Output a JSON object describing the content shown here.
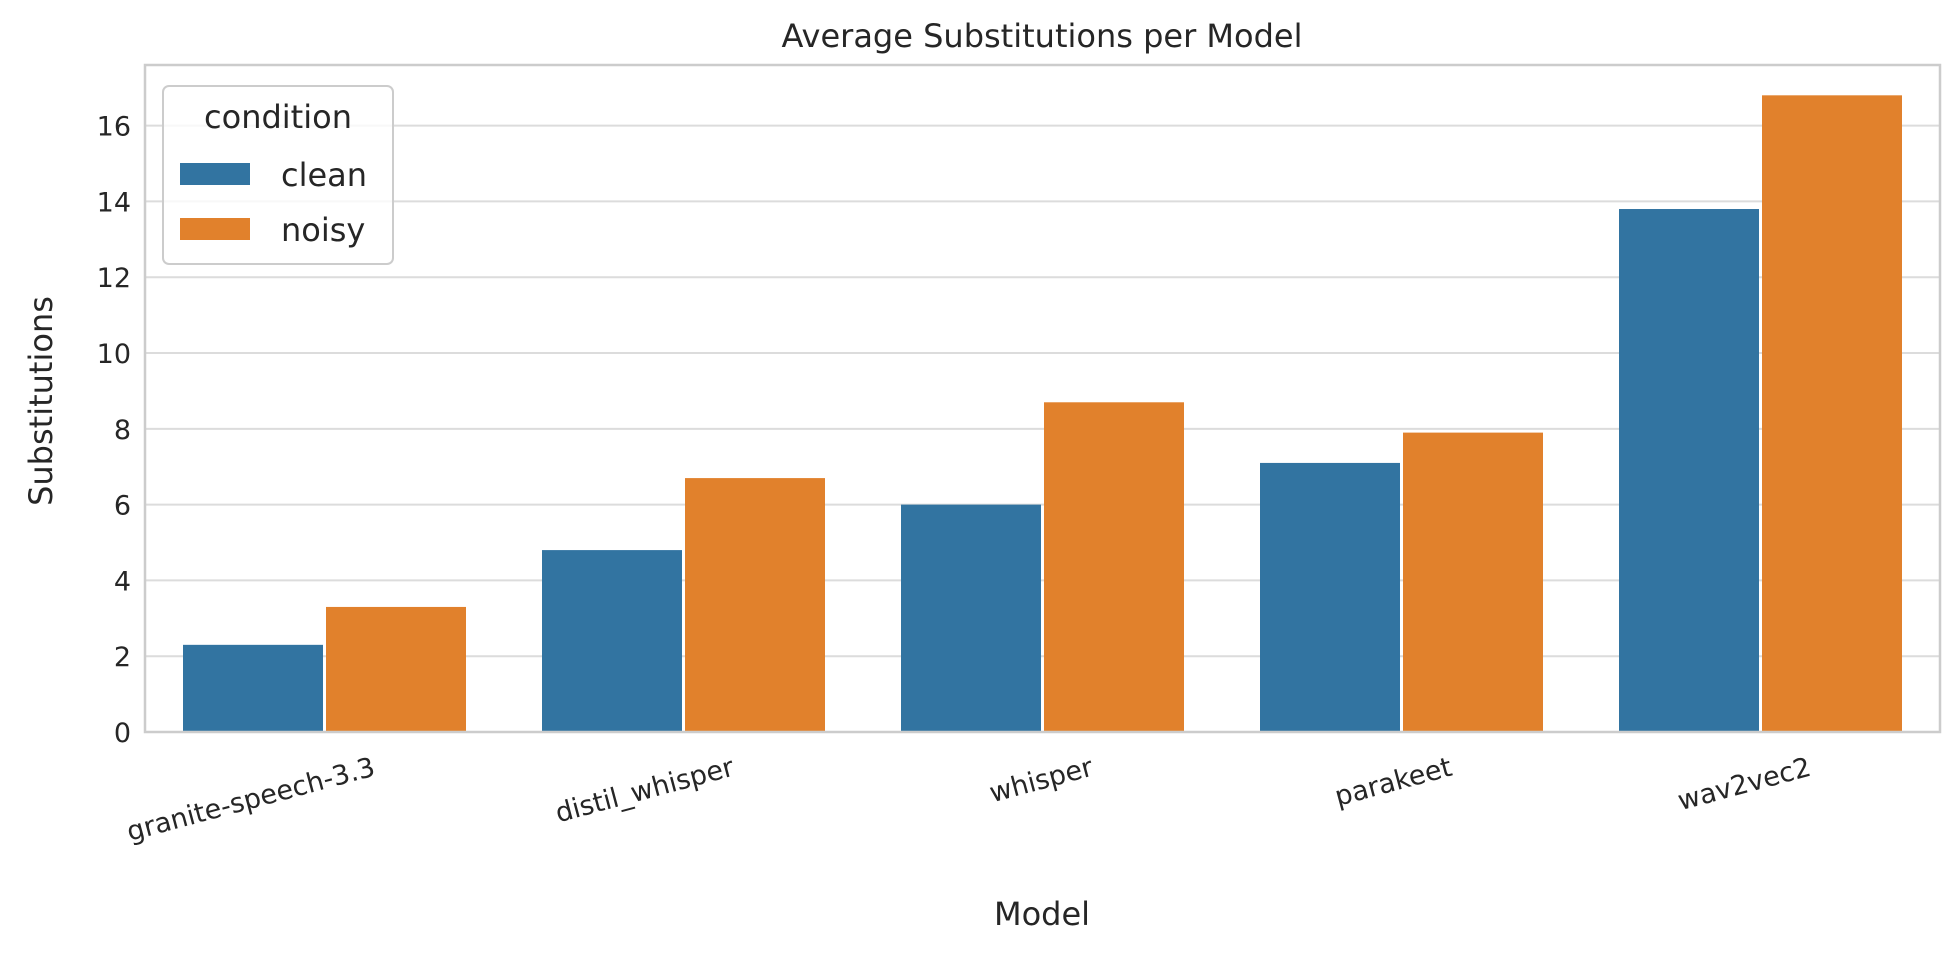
{
  "chart_data": {
    "type": "bar",
    "title": "Average Substitutions per Model",
    "xlabel": "Model",
    "ylabel": "Substitutions",
    "categories": [
      "granite-speech-3.3",
      "distil_whisper",
      "whisper",
      "parakeet",
      "wav2vec2"
    ],
    "series": [
      {
        "name": "clean",
        "color": "#3274a1",
        "values": [
          2.3,
          4.8,
          6.0,
          7.1,
          13.8
        ]
      },
      {
        "name": "noisy",
        "color": "#e1812c",
        "values": [
          3.3,
          6.7,
          8.7,
          7.9,
          16.8
        ]
      }
    ],
    "ylim": [
      0,
      17.6
    ],
    "yticks": [
      "0",
      "2",
      "4",
      "6",
      "8",
      "10",
      "12",
      "14",
      "16"
    ],
    "grid": true,
    "legend": {
      "title": "condition",
      "position": "top-left"
    }
  }
}
